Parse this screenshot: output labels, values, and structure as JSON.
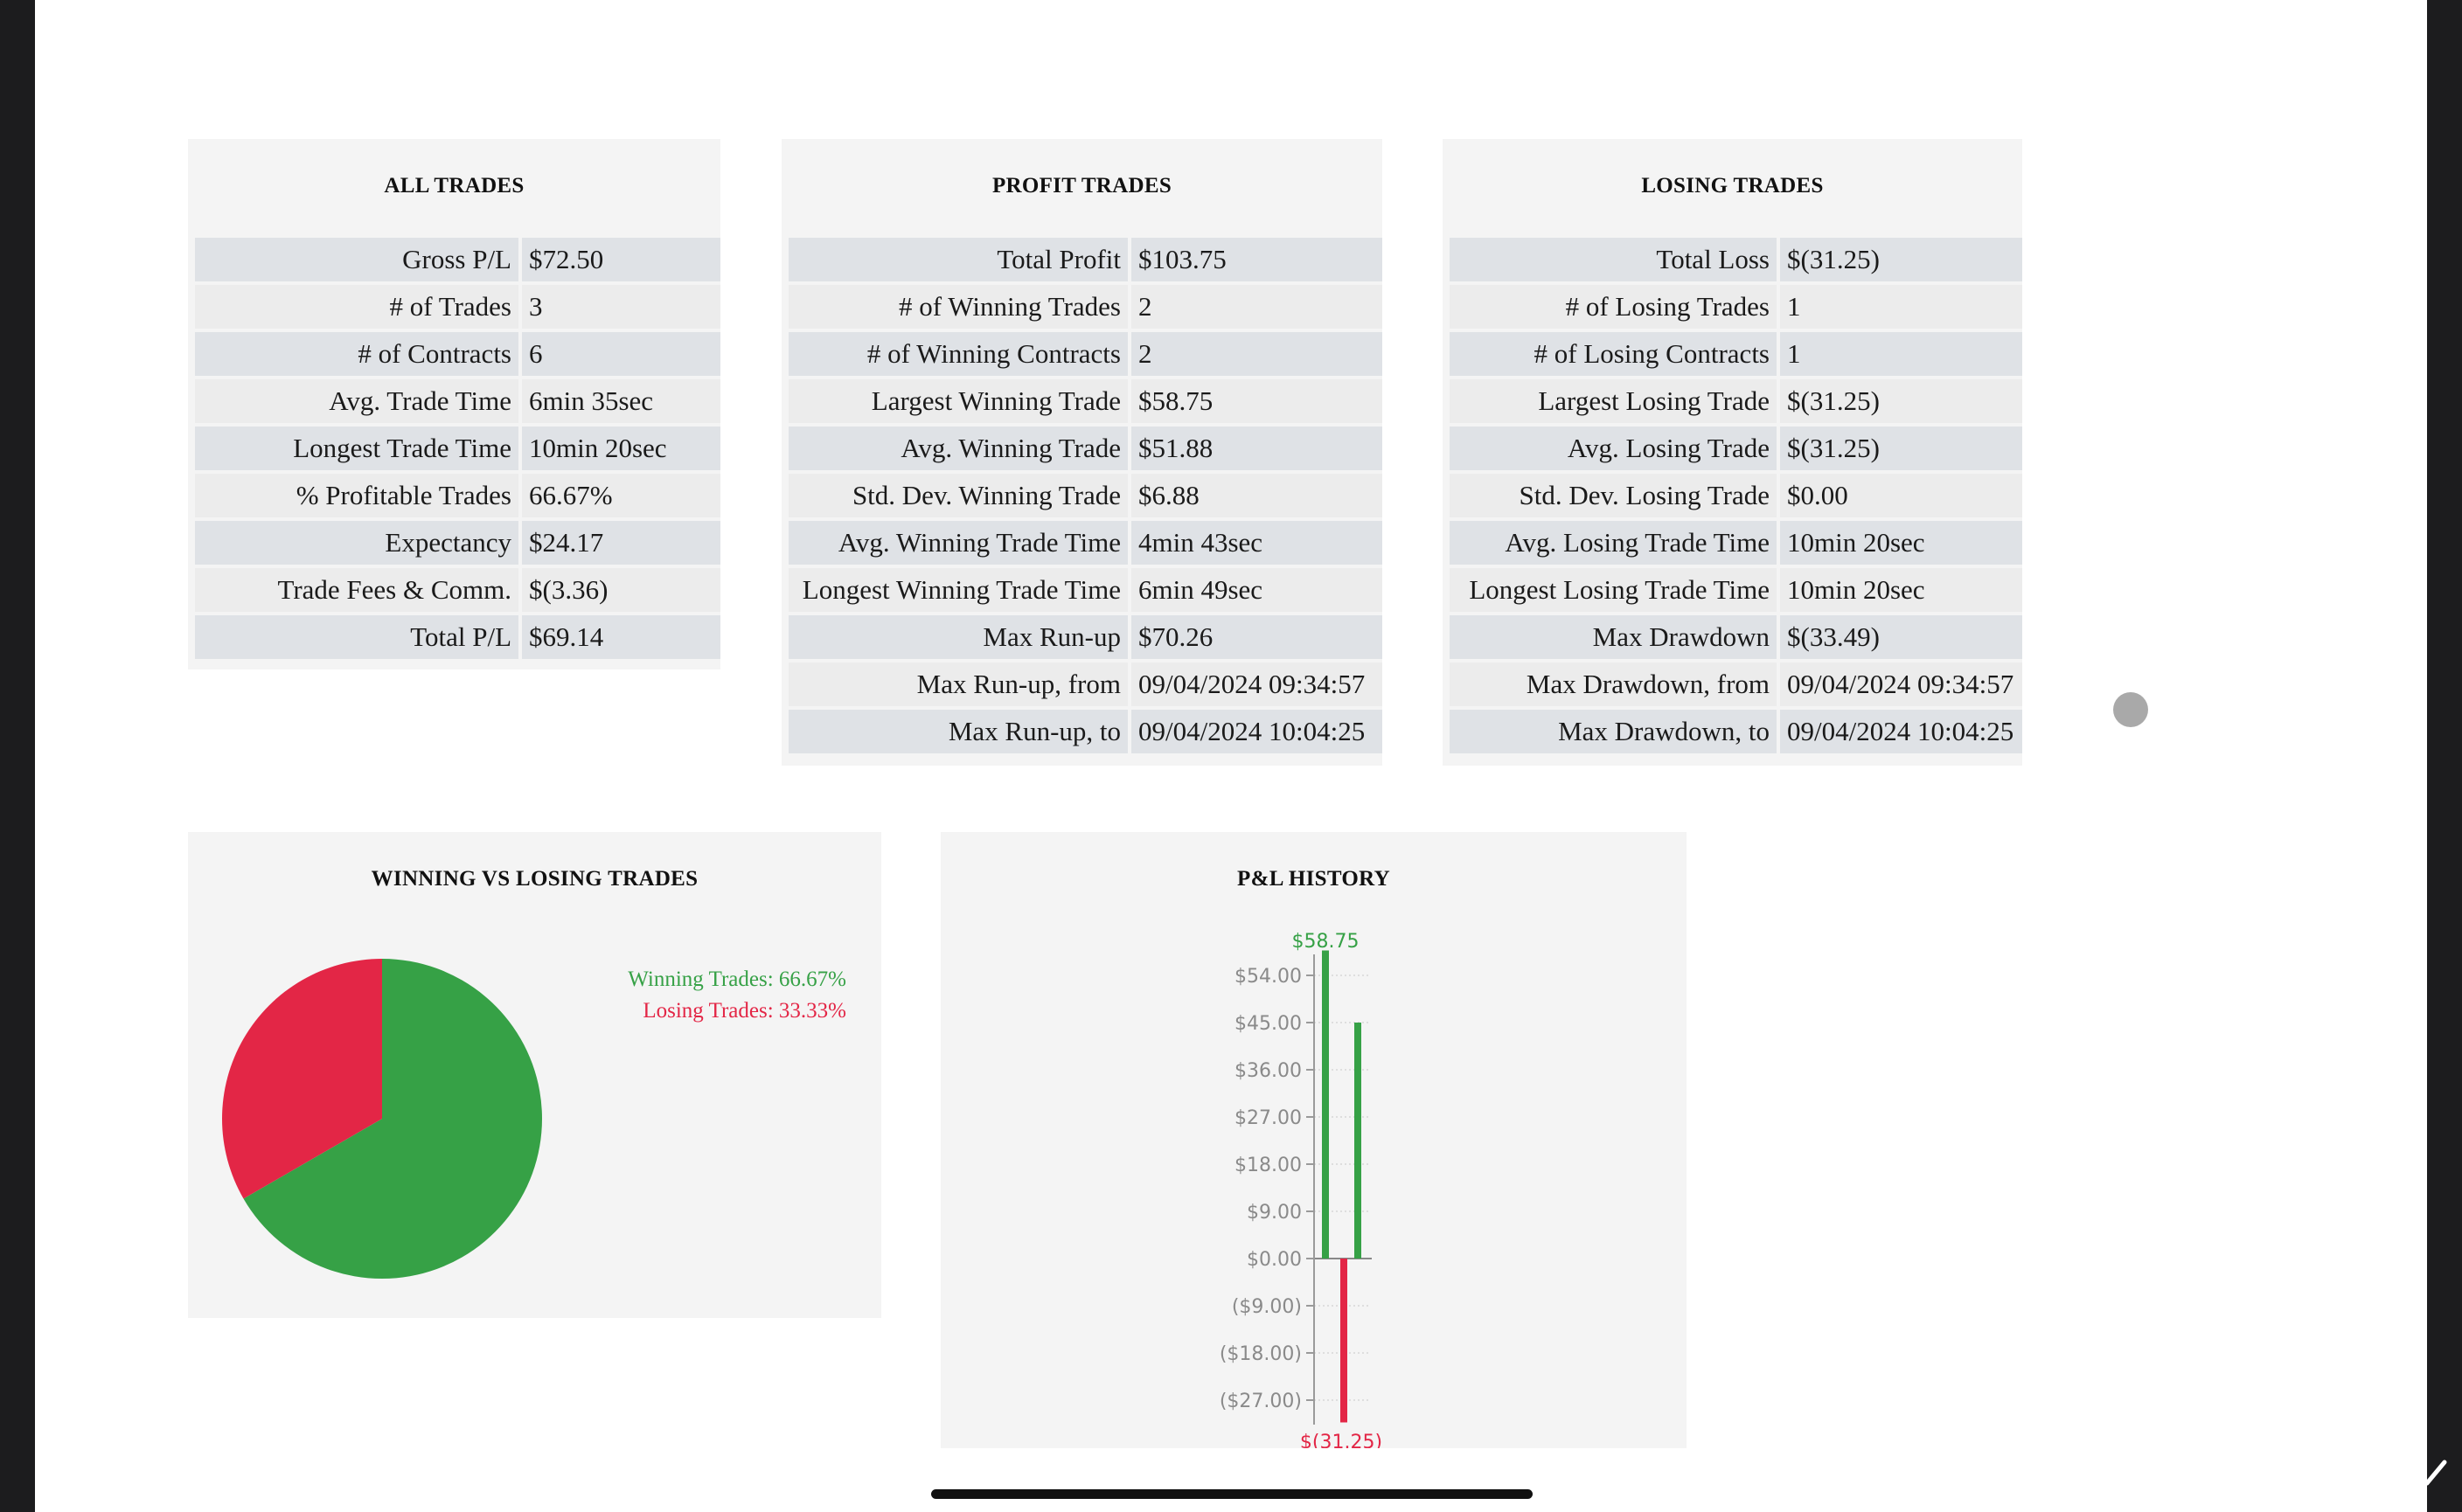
{
  "all_trades": {
    "title": "ALL TRADES",
    "rows": [
      {
        "label": "Gross P/L",
        "value": "$72.50"
      },
      {
        "label": "# of Trades",
        "value": "3"
      },
      {
        "label": "# of Contracts",
        "value": "6"
      },
      {
        "label": "Avg. Trade Time",
        "value": "6min 35sec"
      },
      {
        "label": "Longest Trade Time",
        "value": "10min 20sec"
      },
      {
        "label": "% Profitable Trades",
        "value": "66.67%"
      },
      {
        "label": "Expectancy",
        "value": "$24.17"
      },
      {
        "label": "Trade Fees & Comm.",
        "value": "$(3.36)"
      },
      {
        "label": "Total P/L",
        "value": "$69.14"
      }
    ]
  },
  "profit_trades": {
    "title": "PROFIT TRADES",
    "rows": [
      {
        "label": "Total Profit",
        "value": "$103.75"
      },
      {
        "label": "# of Winning Trades",
        "value": "2"
      },
      {
        "label": "# of Winning Contracts",
        "value": "2"
      },
      {
        "label": "Largest Winning Trade",
        "value": "$58.75"
      },
      {
        "label": "Avg. Winning Trade",
        "value": "$51.88"
      },
      {
        "label": "Std. Dev. Winning Trade",
        "value": "$6.88"
      },
      {
        "label": "Avg. Winning Trade Time",
        "value": "4min 43sec"
      },
      {
        "label": "Longest Winning Trade Time",
        "value": "6min 49sec"
      },
      {
        "label": "Max Run-up",
        "value": "$70.26"
      },
      {
        "label": "Max Run-up, from",
        "value": "09/04/2024 09:34:57"
      },
      {
        "label": "Max Run-up, to",
        "value": "09/04/2024 10:04:25"
      }
    ]
  },
  "losing_trades": {
    "title": "LOSING TRADES",
    "rows": [
      {
        "label": "Total Loss",
        "value": "$(31.25)"
      },
      {
        "label": "# of Losing Trades",
        "value": "1"
      },
      {
        "label": "# of Losing Contracts",
        "value": "1"
      },
      {
        "label": "Largest Losing Trade",
        "value": "$(31.25)"
      },
      {
        "label": "Avg. Losing Trade",
        "value": "$(31.25)"
      },
      {
        "label": "Std. Dev. Losing Trade",
        "value": "$0.00"
      },
      {
        "label": "Avg. Losing Trade Time",
        "value": "10min 20sec"
      },
      {
        "label": "Longest Losing Trade Time",
        "value": "10min 20sec"
      },
      {
        "label": "Max Drawdown",
        "value": "$(33.49)"
      },
      {
        "label": "Max Drawdown, from",
        "value": "09/04/2024 09:34:57"
      },
      {
        "label": "Max Drawdown, to",
        "value": "09/04/2024 10:04:25"
      }
    ]
  },
  "win_loss": {
    "title": "WINNING VS LOSING TRADES",
    "winning_legend": "Winning Trades: 66.67%",
    "losing_legend": "Losing Trades: 33.33%"
  },
  "pl_history": {
    "title": "P&L HISTORY",
    "max_label": "$58.75",
    "min_label": "$(31.25)"
  },
  "chart_data": [
    {
      "type": "pie",
      "title": "WINNING VS LOSING TRADES",
      "slices": [
        {
          "label": "Winning Trades",
          "value": 66.67,
          "color": "#36a146"
        },
        {
          "label": "Losing Trades",
          "value": 33.33,
          "color": "#e32646"
        }
      ]
    },
    {
      "type": "bar",
      "title": "P&L HISTORY",
      "values": [
        58.75,
        45.0,
        -31.25
      ],
      "colors": [
        "#36a146",
        "#36a146",
        "#e32646"
      ],
      "ylim": [
        -31.25,
        58.75
      ],
      "ticks": [
        54,
        45,
        36,
        27,
        18,
        9,
        0,
        -9,
        -18,
        -27
      ],
      "tick_labels": [
        "$54.00",
        "$45.00",
        "$36.00",
        "$27.00",
        "$18.00",
        "$9.00",
        "$0.00",
        "($9.00)",
        "($18.00)",
        "($27.00)"
      ]
    }
  ],
  "colors": {
    "win": "#36a146",
    "loss": "#e32646",
    "panel_bg": "#f4f4f4"
  }
}
